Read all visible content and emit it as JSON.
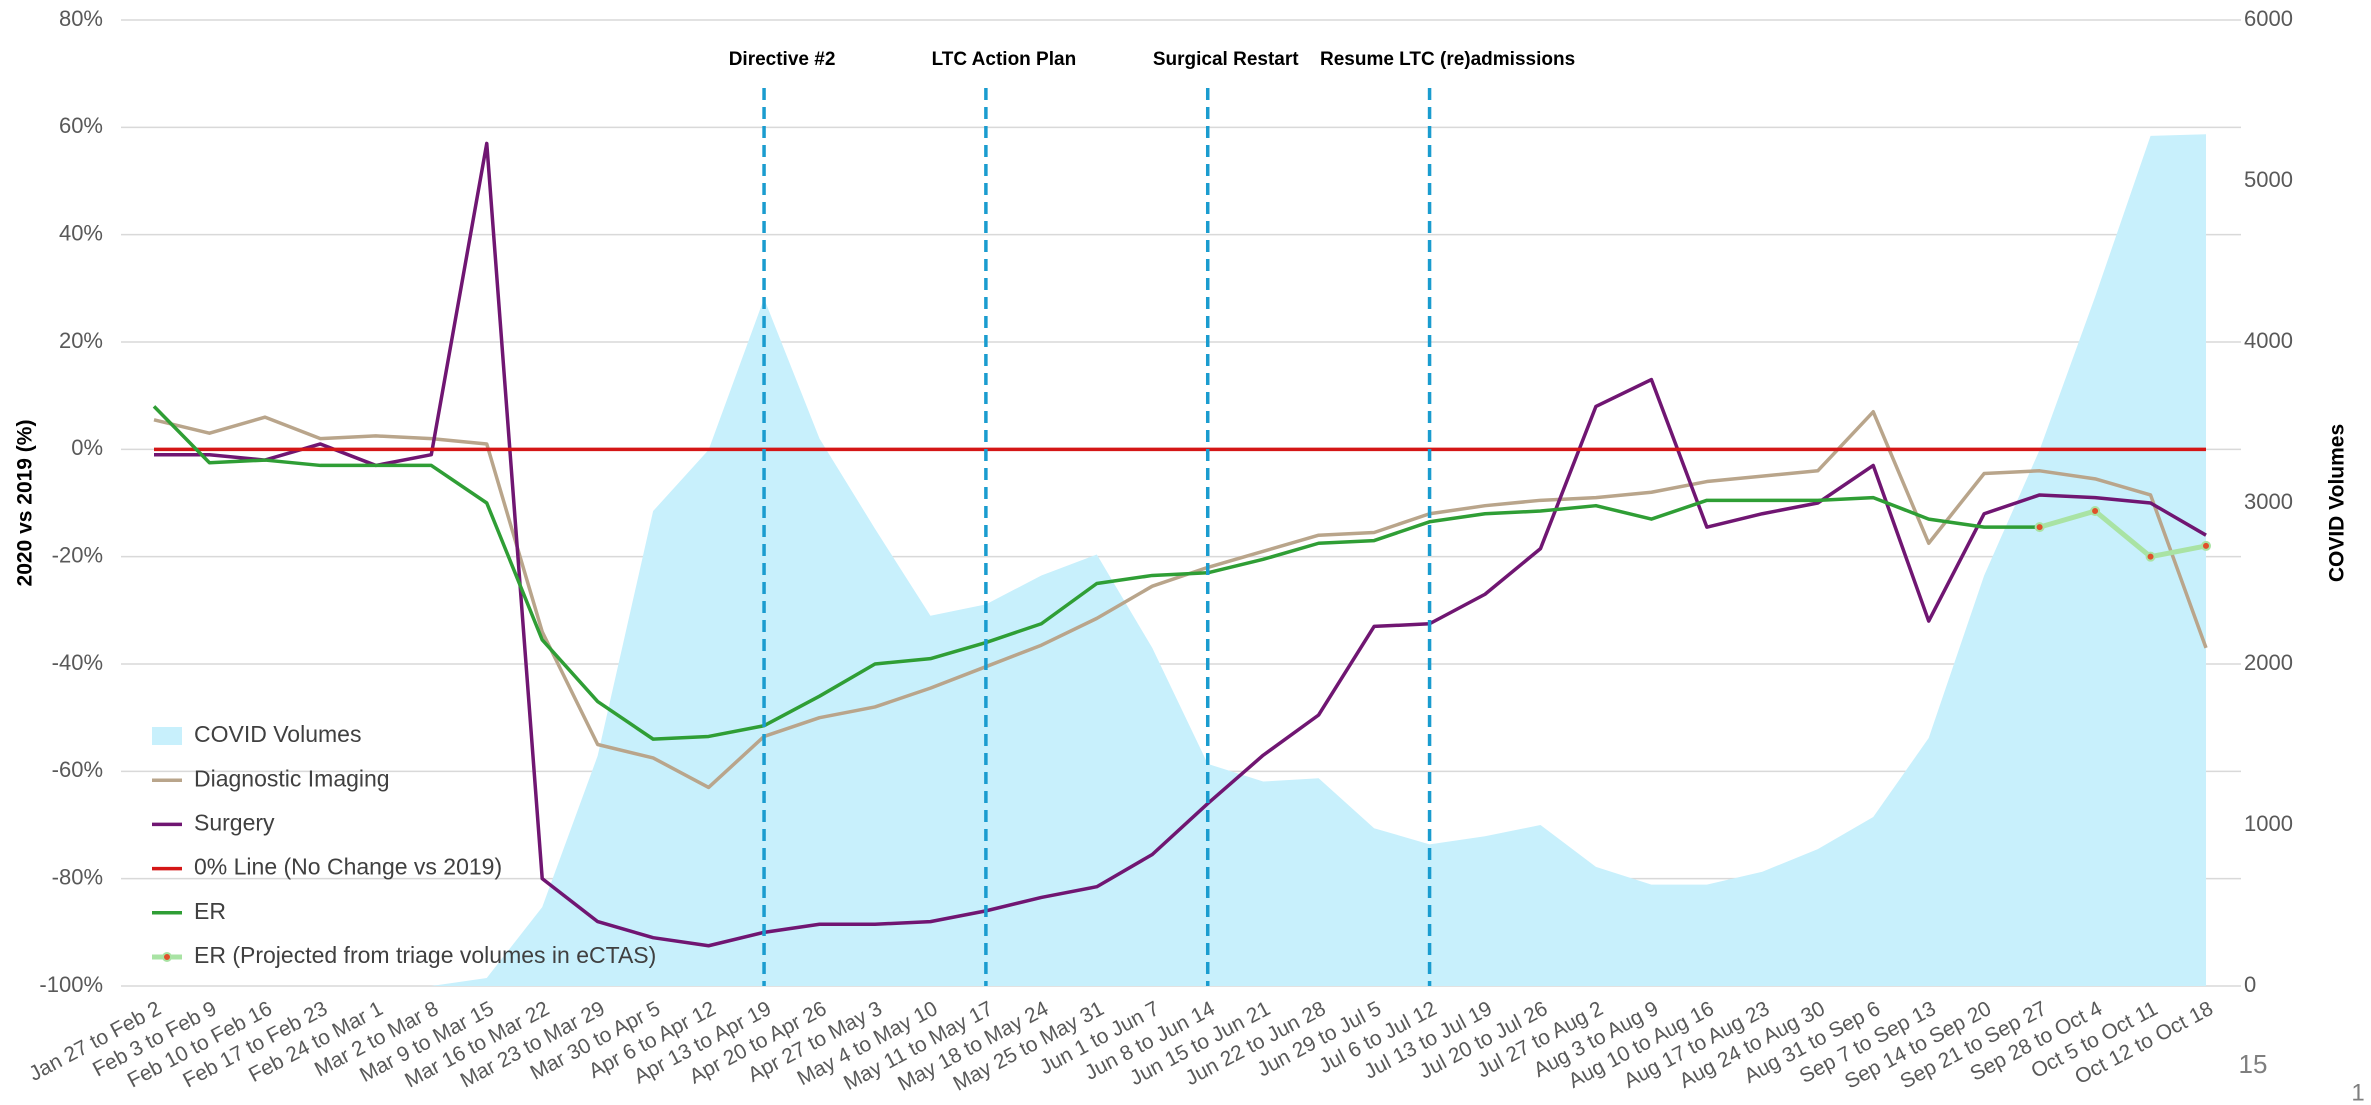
{
  "chart_data": {
    "type": "line",
    "y_label": "2020 vs 2019  (%)",
    "y2_label": "COVID Volumes",
    "categories": [
      "Jan 27 to Feb 2",
      "Feb 3 to Feb 9",
      "Feb 10 to Feb 16",
      "Feb 17 to Feb 23",
      "Feb 24 to Mar 1",
      "Mar 2 to Mar 8",
      "Mar 9 to Mar 15",
      "Mar 16 to Mar 22",
      "Mar 23 to Mar 29",
      "Mar 30 to Apr 5",
      "Apr 6 to Apr 12",
      "Apr 13 to Apr 19",
      "Apr 20 to Apr 26",
      "Apr 27 to May 3",
      "May 4 to May 10",
      "May 11 to May 17",
      "May 18 to May 24",
      "May 25 to May 31",
      "Jun 1 to Jun 7",
      "Jun 8 to Jun 14",
      "Jun 15 to Jun 21",
      "Jun 22 to Jun 28",
      "Jun 29 to Jul 5",
      "Jul 6 to Jul 12",
      "Jul 13 to Jul 19",
      "Jul 20 to Jul 26",
      "Jul 27 to Aug 2",
      "Aug 3 to Aug 9",
      "Aug 10 to Aug 16",
      "Aug 17 to Aug 23",
      "Aug 24 to Aug 30",
      "Aug 31 to Sep 6",
      "Sep 7 to Sep 13",
      "Sep 14 to Sep 20",
      "Sep 21 to Sep 27",
      "Sep 28 to Oct 4",
      "Oct 5 to Oct 11",
      "Oct 12 to Oct 18"
    ],
    "series": [
      {
        "name": "COVID Volumes",
        "type": "area",
        "axis": "y2",
        "color": "#c8f0fc",
        "values": [
          0,
          0,
          0,
          0,
          0,
          0,
          50,
          490,
          1430,
          2950,
          3330,
          4270,
          3400,
          2840,
          2300,
          2370,
          2550,
          2680,
          2100,
          1380,
          1270,
          1290,
          980,
          880,
          930,
          1000,
          740,
          630,
          630,
          710,
          850,
          1050,
          1540,
          2550,
          3330,
          4280,
          5280,
          5290
        ]
      },
      {
        "name": "Diagnostic Imaging",
        "type": "line",
        "color": "#b9a58b",
        "values": [
          5.5,
          3,
          6,
          2,
          2.5,
          2,
          1,
          -34,
          -55,
          -57.5,
          -63,
          -53.5,
          -50,
          -48,
          -44.5,
          -40.5,
          -36.5,
          -31.5,
          -25.5,
          -22,
          -19,
          -16,
          -15.5,
          -12,
          -10.5,
          -9.5,
          -9,
          -8,
          -6,
          -5,
          -4,
          7,
          -17.5,
          -4.5,
          -4,
          -5.5,
          -8.5,
          -37
        ]
      },
      {
        "name": "Surgery",
        "type": "line",
        "color": "#701672",
        "values": [
          -1,
          -1,
          -2,
          1,
          -3,
          -1,
          57,
          -80,
          -88,
          -91,
          -92.5,
          -90,
          -88.5,
          -88.5,
          -88,
          -86,
          -83.5,
          -81.5,
          -75.5,
          -66,
          -57,
          -49.5,
          -33,
          -32.5,
          -27,
          -18.5,
          8,
          13,
          -14.5,
          -12,
          -10,
          -3,
          -32,
          -12,
          -8.5,
          -9,
          -10,
          -16
        ]
      },
      {
        "name": "0% Line (No Change vs 2019)",
        "type": "line",
        "color": "#d41616",
        "values": [
          0,
          0,
          0,
          0,
          0,
          0,
          0,
          0,
          0,
          0,
          0,
          0,
          0,
          0,
          0,
          0,
          0,
          0,
          0,
          0,
          0,
          0,
          0,
          0,
          0,
          0,
          0,
          0,
          0,
          0,
          0,
          0,
          0,
          0,
          0,
          0,
          0,
          0
        ]
      },
      {
        "name": "ER",
        "type": "line",
        "color": "#2f9e35",
        "values": [
          8,
          -2.5,
          -2,
          -3,
          -3,
          -3,
          -10,
          -35.5,
          -47,
          -54,
          -53.5,
          -51.5,
          -46,
          -40,
          -39,
          -36,
          -32.5,
          -25,
          -23.5,
          -23,
          -20.5,
          -17.5,
          -17,
          -13.5,
          -12,
          -11.5,
          -10.5,
          -13,
          -9.5,
          -9.5,
          -9.5,
          -9,
          -13,
          -14.5,
          -14.5,
          null,
          null,
          null
        ]
      },
      {
        "name": "ER (Projected from triage volumes in eCTAS)",
        "type": "line",
        "color": "#a9e3a4",
        "marker_color": "#e0502a",
        "values": [
          null,
          null,
          null,
          null,
          null,
          null,
          null,
          null,
          null,
          null,
          null,
          null,
          null,
          null,
          null,
          null,
          null,
          null,
          null,
          null,
          null,
          null,
          null,
          null,
          null,
          null,
          null,
          null,
          null,
          null,
          null,
          null,
          null,
          null,
          -14.5,
          -11.5,
          -20,
          -18
        ]
      }
    ],
    "annotations": [
      {
        "label": "Directive #2",
        "x": "Apr 13 to Apr 19"
      },
      {
        "label": "LTC Action Plan",
        "x": "May 11 to May 17"
      },
      {
        "label": "Surgical Restart",
        "x": "Jun 8 to Jun 14"
      },
      {
        "label": "Resume LTC (re)admissions",
        "x": "Jul 6 to Jul 12"
      }
    ],
    "annotation_color": "#1a9ccf",
    "ylim": [
      -100,
      80
    ],
    "yticks": [
      {
        "value": -100,
        "label": "-100%"
      },
      {
        "value": -80,
        "label": "-80%"
      },
      {
        "value": -60,
        "label": "-60%"
      },
      {
        "value": -40,
        "label": "-40%"
      },
      {
        "value": -20,
        "label": "-20%"
      },
      {
        "value": 0,
        "label": "0%"
      },
      {
        "value": 20,
        "label": "20%"
      },
      {
        "value": 40,
        "label": "40%"
      },
      {
        "value": 60,
        "label": "60%"
      },
      {
        "value": 80,
        "label": "80%"
      }
    ],
    "y2lim": [
      0,
      6000
    ],
    "y2ticks": [
      0,
      1000,
      2000,
      3000,
      4000,
      5000,
      6000
    ],
    "grid": true,
    "legend": "lower left",
    "page_number": "15",
    "corner_mark": "1"
  }
}
